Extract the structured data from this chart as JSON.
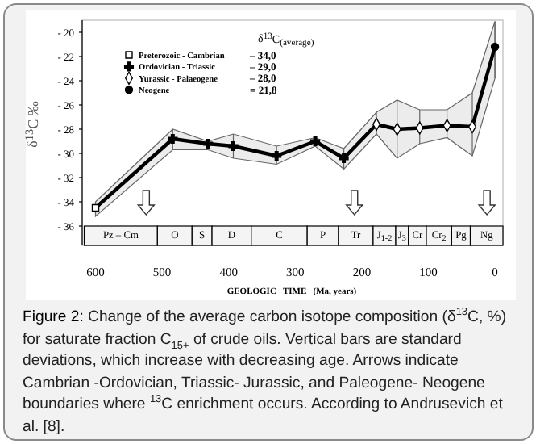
{
  "chart_data": {
    "xlabel": "GEOLOGIC   TIME   (Ma, years)",
    "ylabel": "δ$^{13}$C ‰",
    "legend_title": "δ$^{13}$C$_{(average)}$",
    "x": [
      600,
      484,
      431,
      393,
      328,
      270,
      227,
      178,
      147,
      113,
      72,
      34,
      0
    ],
    "xlim": [
      620,
      -12
    ],
    "xticks": [
      600,
      500,
      400,
      300,
      200,
      100,
      0
    ],
    "bands": [
      {
        "axis": "x",
        "from": 617,
        "to": 507,
        "label": "Pz – Cm",
        "color": "#f4f4f4"
      },
      {
        "axis": "x",
        "from": 507,
        "to": 455,
        "label": "O",
        "color": "#f4f4f4"
      },
      {
        "axis": "x",
        "from": 455,
        "to": 425,
        "label": "S",
        "color": "#f4f4f4"
      },
      {
        "axis": "x",
        "from": 425,
        "to": 366,
        "label": "D",
        "color": "#f4f4f4"
      },
      {
        "axis": "x",
        "from": 366,
        "to": 282,
        "label": "C",
        "color": "#f4f4f4"
      },
      {
        "axis": "x",
        "from": 282,
        "to": 235,
        "label": "P",
        "color": "#f4f4f4"
      },
      {
        "axis": "x",
        "from": 235,
        "to": 183,
        "label": "Tr",
        "color": "#f4f4f4"
      },
      {
        "axis": "x",
        "from": 183,
        "to": 149,
        "label": "J$_{1-2}$",
        "color": "#f4f4f4"
      },
      {
        "axis": "x",
        "from": 149,
        "to": 130,
        "label": "J$_{3}$",
        "color": "#f4f4f4"
      },
      {
        "axis": "x",
        "from": 130,
        "to": 103,
        "label": "Cr",
        "color": "#f4f4f4"
      },
      {
        "axis": "x",
        "from": 103,
        "to": 65,
        "label": "Cr$_{2}$",
        "color": "#f4f4f4"
      },
      {
        "axis": "x",
        "from": 65,
        "to": 37,
        "label": "Pg",
        "color": "#f4f4f4"
      },
      {
        "axis": "x",
        "from": 37,
        "to": -12,
        "label": "Ng",
        "color": "#f4f4f4"
      }
    ],
    "type": "line",
    "ylim": [
      -37.6,
      -19
    ],
    "yticks": [
      -20,
      -22,
      -24,
      -26,
      -28,
      -30,
      -32,
      -34,
      -36
    ],
    "grid": false,
    "legend": "top left",
    "series": [
      {
        "color": "#000000",
        "values": [
          -34.5,
          -28.8,
          -29.2,
          -29.4,
          -30.2,
          -29.0,
          -30.4,
          -27.6,
          -28.0,
          -27.9,
          -27.7,
          -27.8,
          -21.2
        ],
        "lower": [
          -35.2,
          -29.7,
          -29.7,
          -30.4,
          -30.9,
          -29.4,
          -31.3,
          -28.4,
          -30.4,
          -29.2,
          -28.7,
          -30.2,
          -23.8
        ],
        "upper": [
          -34.0,
          -28.0,
          -29.0,
          -28.4,
          -29.4,
          -28.7,
          -29.6,
          -26.6,
          -25.6,
          -26.4,
          -26.4,
          -25.0,
          -19.1
        ],
        "errors": [
          [
            -35.2,
            -34.0
          ],
          [
            -29.7,
            -28.0
          ],
          [
            -29.7,
            -29.0
          ],
          [
            -30.4,
            -28.4
          ],
          [
            -30.9,
            -29.4
          ],
          [
            -29.4,
            -28.7
          ],
          [
            -31.3,
            -29.6
          ],
          [
            -28.4,
            -26.6
          ],
          [
            -30.4,
            -25.6
          ],
          [
            -29.2,
            -26.4
          ],
          [
            -28.7,
            -26.4
          ],
          [
            -30.2,
            -25.0
          ],
          [
            -23.8,
            -19.1
          ]
        ]
      },
      {
        "type": "scatter",
        "name": "Preterozoic - Cambrian",
        "marker": "square",
        "color": "#000000",
        "x": [
          600
        ],
        "values": [
          -34.5
        ]
      },
      {
        "type": "scatter",
        "name": "Ordovician - Triassic",
        "marker": "cross",
        "color": "#000000",
        "x": [
          484,
          431,
          393,
          328,
          270,
          227
        ],
        "values": [
          -28.8,
          -29.2,
          -29.4,
          -30.2,
          -29.0,
          -30.4
        ]
      },
      {
        "type": "scatter",
        "name": "Yurassic - Palaeogene",
        "marker": "diamond",
        "color": "#000000",
        "x": [
          178,
          147,
          113,
          72,
          34
        ],
        "values": [
          -27.6,
          -28.0,
          -27.9,
          -27.7,
          -27.8
        ]
      },
      {
        "type": "scatter",
        "name": "Neogene",
        "marker": "circle",
        "color": "#000000",
        "x": [
          0
        ],
        "values": [
          -21.2
        ]
      }
    ],
    "annotations": [
      "– 34,0",
      "– 29,0",
      "– 28,0",
      "= 21,8",
      "Figure 2: Change of the average carbon isotope composition (δ$^{13}$C, %) for saturate fraction C$_{15+}$ of crude oils. Vertical bars are standard deviations, which increase with decreasing age. Arrows indicate Cambrian -Ordovician, Triassic- Jurassic, and Paleogene- Neogene boundaries where $^{13}$C enrichment occurs. According to  Andrusevich et al. [8]."
    ]
  }
}
